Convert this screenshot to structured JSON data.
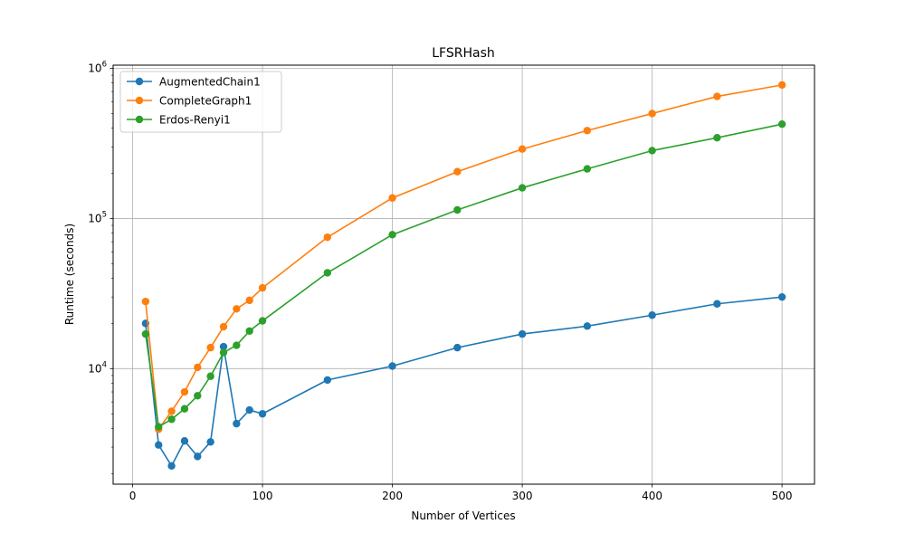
{
  "chart_data": {
    "type": "line",
    "title": "LFSRHash",
    "xlabel": "Number of Vertices",
    "ylabel": "Runtime (seconds)",
    "yscale": "log",
    "xlim": [
      -15,
      525
    ],
    "ylim": [
      1700,
      1050000
    ],
    "grid": true,
    "legend_position": "top-left",
    "x_ticks": [
      0,
      100,
      200,
      300,
      400,
      500
    ],
    "y_ticks": [
      {
        "value": 10000,
        "base": "10",
        "exp": "4"
      },
      {
        "value": 100000,
        "base": "10",
        "exp": "5"
      },
      {
        "value": 1000000,
        "base": "10",
        "exp": "6"
      }
    ],
    "x": [
      10,
      20,
      30,
      40,
      50,
      60,
      70,
      80,
      90,
      100,
      150,
      200,
      250,
      300,
      350,
      400,
      450,
      500
    ],
    "series": [
      {
        "name": "AugmentedChain1",
        "color": "#1f77b4",
        "values": [
          20000,
          3100,
          2250,
          3300,
          2600,
          3250,
          14000,
          4300,
          5300,
          5000,
          8400,
          10400,
          13800,
          17000,
          19200,
          22700,
          27000,
          30000
        ]
      },
      {
        "name": "CompleteGraph1",
        "color": "#ff7f0e",
        "values": [
          28000,
          3950,
          5200,
          7000,
          10200,
          13800,
          19000,
          25000,
          28500,
          34500,
          75000,
          137000,
          205000,
          290000,
          385000,
          500000,
          650000,
          775000
        ]
      },
      {
        "name": "Erdos-Renyi1",
        "color": "#2ca02c",
        "values": [
          17000,
          4100,
          4600,
          5400,
          6600,
          8900,
          12800,
          14300,
          17800,
          20800,
          43500,
          78000,
          114000,
          160000,
          214000,
          283000,
          345000,
          425000
        ]
      }
    ]
  }
}
